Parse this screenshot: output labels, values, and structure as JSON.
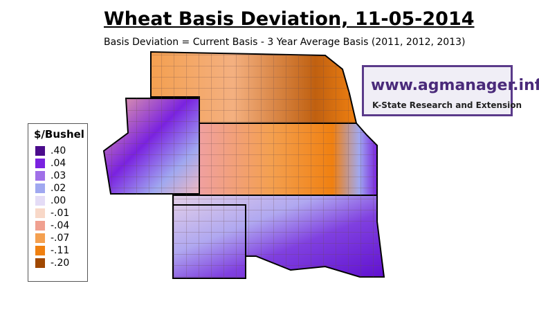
{
  "title": "Wheat Basis Deviation, 11-05-2014",
  "subtitle": "Basis Deviation = Current Basis - 3 Year Average Basis (2011, 2012, 2013)",
  "legend": {
    "title": "$/Bushel",
    "items": [
      {
        "label": ".40",
        "color": "#4b0c8c"
      },
      {
        "label": ".04",
        "color": "#7a22e0"
      },
      {
        "label": ".03",
        "color": "#a070e8"
      },
      {
        "label": ".02",
        "color": "#a0a8f0"
      },
      {
        "label": ".00",
        "color": "#e4dcf6"
      },
      {
        "label": "-.01",
        "color": "#f8d8c8"
      },
      {
        "label": "-.04",
        "color": "#f0a090"
      },
      {
        "label": "-.07",
        "color": "#f4a050"
      },
      {
        "label": "-.11",
        "color": "#f08010"
      },
      {
        "label": "-.20",
        "color": "#a04800"
      }
    ]
  },
  "logo": {
    "url": "www.agmanager.info",
    "org": "K-State Research and Extension"
  }
}
